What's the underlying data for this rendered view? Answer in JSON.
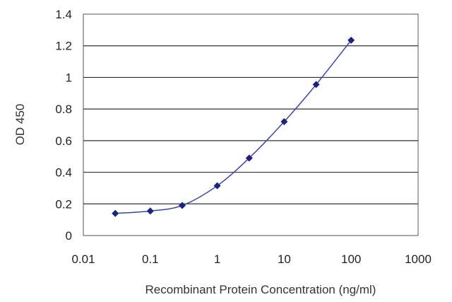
{
  "chart_data": {
    "type": "line",
    "title": "",
    "xlabel": "Recombinant Protein Concentration (ng/ml)",
    "ylabel": "OD 450",
    "x_scale": "log",
    "xlim": [
      0.01,
      1000
    ],
    "ylim": [
      0,
      1.4
    ],
    "x_ticks": [
      "0.01",
      "0.1",
      "1",
      "10",
      "100",
      "1000"
    ],
    "y_ticks": [
      "0",
      "0.2",
      "0.4",
      "0.6",
      "0.8",
      "1",
      "1.2",
      "1.4"
    ],
    "grid": "horizontal",
    "legend": "none",
    "series": [
      {
        "x": [
          0.03,
          0.1,
          0.3,
          1,
          3,
          10,
          30,
          100
        ],
        "y": [
          0.14,
          0.155,
          0.19,
          0.315,
          0.49,
          0.72,
          0.955,
          1.235
        ]
      }
    ],
    "colors": {
      "line": "#3a47a8",
      "marker": "#1a237e",
      "grid": "#333333",
      "frame": "#555555"
    }
  }
}
